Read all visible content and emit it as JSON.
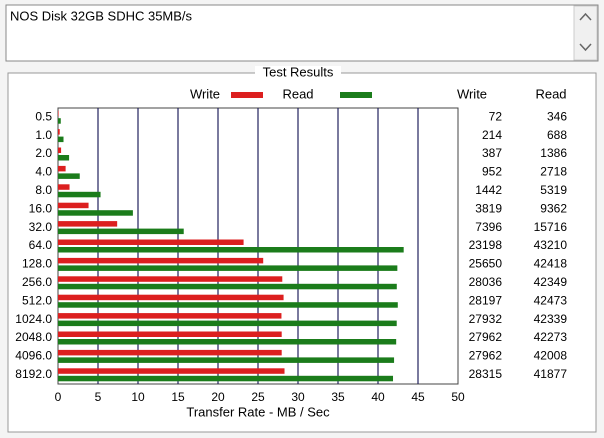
{
  "textbox": "NOS Disk 32GB SDHC 35MB/s",
  "chart_data": {
    "type": "bar",
    "orientation": "horizontal",
    "title": "Test Results",
    "categories": [
      "0.5",
      "1.0",
      "2.0",
      "4.0",
      "8.0",
      "16.0",
      "32.0",
      "64.0",
      "128.0",
      "256.0",
      "512.0",
      "1024.0",
      "2048.0",
      "4096.0",
      "8192.0"
    ],
    "series": [
      {
        "name": "Write",
        "color": "#dc1f1f",
        "values": [
          0.072,
          0.214,
          0.387,
          0.952,
          1.442,
          3.819,
          7.396,
          23.198,
          25.65,
          28.036,
          28.197,
          27.932,
          27.962,
          27.962,
          28.315
        ],
        "value_labels": [
          "72",
          "214",
          "387",
          "952",
          "1442",
          "3819",
          "7396",
          "23198",
          "25650",
          "28036",
          "28197",
          "27932",
          "27962",
          "27962",
          "28315"
        ]
      },
      {
        "name": "Read",
        "color": "#1b7c1b",
        "values": [
          0.346,
          0.688,
          1.386,
          2.718,
          5.319,
          9.362,
          15.716,
          43.21,
          42.418,
          42.349,
          42.473,
          42.339,
          42.273,
          42.008,
          41.877
        ],
        "value_labels": [
          "346",
          "688",
          "1386",
          "2718",
          "5319",
          "9362",
          "15716",
          "43210",
          "42418",
          "42349",
          "42473",
          "42339",
          "42273",
          "42008",
          "41877"
        ]
      }
    ],
    "xlabel": "Transfer Rate - MB / Sec",
    "xlim": [
      0,
      50
    ],
    "xticks": [
      0,
      5,
      10,
      15,
      20,
      25,
      30,
      35,
      40,
      45,
      50
    ],
    "grid": true
  }
}
